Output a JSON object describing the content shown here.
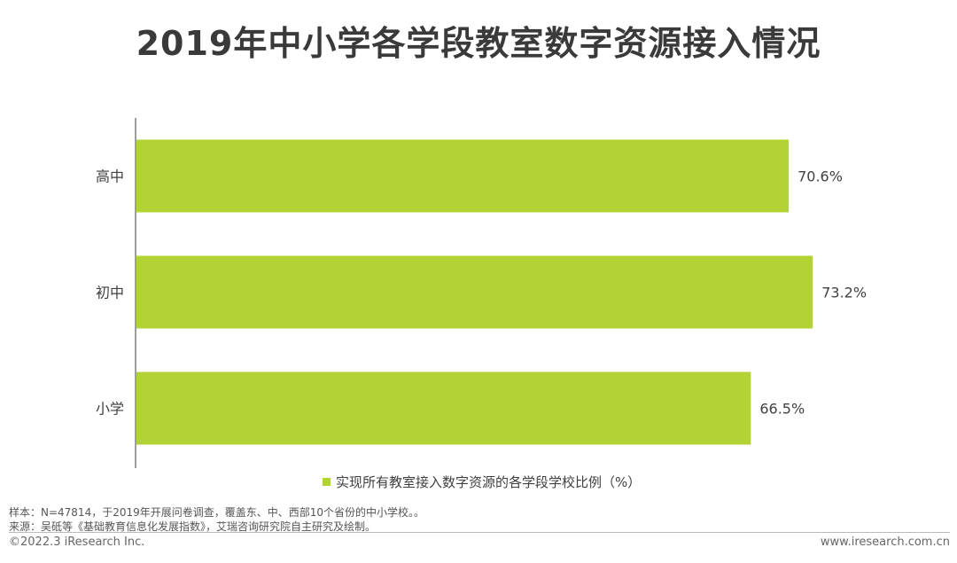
{
  "title": "2019年中小学各学段教室数字资源接入情况",
  "chart_data": {
    "type": "bar",
    "orientation": "horizontal",
    "categories": [
      "高中",
      "初中",
      "小学"
    ],
    "series": [
      {
        "name": "实现所有教室接入数字资源的各学段学校比例（%）",
        "values": [
          70.6,
          73.2,
          66.5
        ],
        "labels": [
          "70.6%",
          "73.2%",
          "66.5%"
        ],
        "color": "#b2d235"
      }
    ],
    "xlim": [
      0,
      75
    ],
    "grid": false,
    "legend_position": "bottom"
  },
  "notes": {
    "sample": "样本：N=47814，于2019年开展问卷调查，覆盖东、中、西部10个省份的中小学校。。",
    "source": "来源：吴砥等《基础教育信息化发展指数》，艾瑞咨询研究院自主研究及绘制。"
  },
  "footer": {
    "copyright": "©2022.3 iResearch Inc.",
    "website": "www.iresearch.com.cn"
  }
}
